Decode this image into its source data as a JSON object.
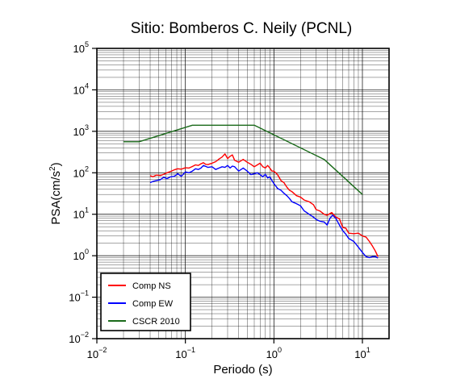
{
  "chart_data": {
    "type": "line",
    "title": "Sitio: Bomberos C. Neily (PCNL)",
    "xlabel": "Periodo (s)",
    "ylabel": {
      "base": "PSA(cm/s",
      "sup": "2",
      "end": ")"
    },
    "xscale": "log",
    "yscale": "log",
    "xlim": [
      0.01,
      20
    ],
    "ylim": [
      0.01,
      100000
    ],
    "grid": true,
    "legend_position": "bottom-left",
    "x_ticks": [
      {
        "value": 0.01,
        "base": "10",
        "exp": "−2"
      },
      {
        "value": 0.1,
        "base": "10",
        "exp": "−1"
      },
      {
        "value": 1,
        "base": "10",
        "exp": "0"
      },
      {
        "value": 10,
        "base": "10",
        "exp": "1"
      }
    ],
    "y_ticks": [
      {
        "value": 0.01,
        "base": "10",
        "exp": "−2"
      },
      {
        "value": 0.1,
        "base": "10",
        "exp": "−1"
      },
      {
        "value": 1,
        "base": "10",
        "exp": "0"
      },
      {
        "value": 10,
        "base": "10",
        "exp": "1"
      },
      {
        "value": 100,
        "base": "10",
        "exp": "2"
      },
      {
        "value": 1000,
        "base": "10",
        "exp": "3"
      },
      {
        "value": 10000,
        "base": "10",
        "exp": "4"
      },
      {
        "value": 100000,
        "base": "10",
        "exp": "5"
      }
    ],
    "series": [
      {
        "name": "Comp NS",
        "color": "#ff0000",
        "points": [
          [
            0.04,
            85
          ],
          [
            0.043,
            80
          ],
          [
            0.047,
            88
          ],
          [
            0.052,
            86
          ],
          [
            0.057,
            92
          ],
          [
            0.062,
            100
          ],
          [
            0.068,
            108
          ],
          [
            0.075,
            118
          ],
          [
            0.082,
            125
          ],
          [
            0.09,
            122
          ],
          [
            0.1,
            132
          ],
          [
            0.11,
            130
          ],
          [
            0.12,
            142
          ],
          [
            0.13,
            155
          ],
          [
            0.14,
            150
          ],
          [
            0.15,
            165
          ],
          [
            0.16,
            175
          ],
          [
            0.17,
            160
          ],
          [
            0.18,
            158
          ],
          [
            0.2,
            170
          ],
          [
            0.22,
            185
          ],
          [
            0.24,
            215
          ],
          [
            0.26,
            240
          ],
          [
            0.28,
            285
          ],
          [
            0.3,
            220
          ],
          [
            0.32,
            250
          ],
          [
            0.34,
            270
          ],
          [
            0.36,
            200
          ],
          [
            0.4,
            180
          ],
          [
            0.45,
            210
          ],
          [
            0.5,
            180
          ],
          [
            0.55,
            160
          ],
          [
            0.6,
            140
          ],
          [
            0.65,
            155
          ],
          [
            0.7,
            170
          ],
          [
            0.75,
            140
          ],
          [
            0.8,
            130
          ],
          [
            0.85,
            150
          ],
          [
            0.9,
            130
          ],
          [
            0.95,
            110
          ],
          [
            1.0,
            110
          ],
          [
            1.1,
            90
          ],
          [
            1.2,
            65
          ],
          [
            1.3,
            58
          ],
          [
            1.4,
            45
          ],
          [
            1.5,
            38
          ],
          [
            1.6,
            35
          ],
          [
            1.8,
            28
          ],
          [
            2.0,
            26
          ],
          [
            2.2,
            22
          ],
          [
            2.5,
            20
          ],
          [
            2.8,
            17
          ],
          [
            3.0,
            13
          ],
          [
            3.3,
            12
          ],
          [
            3.7,
            10
          ],
          [
            4.0,
            9.5
          ],
          [
            4.5,
            11
          ],
          [
            5.0,
            8.5
          ],
          [
            5.5,
            7.8
          ],
          [
            6.0,
            4.8
          ],
          [
            6.5,
            4.6
          ],
          [
            7.0,
            3.5
          ],
          [
            8.0,
            3.4
          ],
          [
            9.0,
            3.5
          ],
          [
            10,
            3.0
          ],
          [
            11,
            2.8
          ],
          [
            12,
            2.2
          ],
          [
            13,
            1.7
          ],
          [
            14,
            1.3
          ],
          [
            15,
            0.95
          ]
        ]
      },
      {
        "name": "Comp EW",
        "color": "#0000ff",
        "points": [
          [
            0.04,
            58
          ],
          [
            0.043,
            62
          ],
          [
            0.047,
            65
          ],
          [
            0.052,
            68
          ],
          [
            0.057,
            78
          ],
          [
            0.062,
            72
          ],
          [
            0.068,
            80
          ],
          [
            0.075,
            82
          ],
          [
            0.082,
            95
          ],
          [
            0.09,
            82
          ],
          [
            0.1,
            105
          ],
          [
            0.11,
            100
          ],
          [
            0.12,
            110
          ],
          [
            0.13,
            125
          ],
          [
            0.14,
            120
          ],
          [
            0.15,
            130
          ],
          [
            0.16,
            150
          ],
          [
            0.18,
            135
          ],
          [
            0.2,
            140
          ],
          [
            0.22,
            120
          ],
          [
            0.24,
            130
          ],
          [
            0.26,
            140
          ],
          [
            0.28,
            135
          ],
          [
            0.3,
            150
          ],
          [
            0.32,
            130
          ],
          [
            0.34,
            145
          ],
          [
            0.36,
            140
          ],
          [
            0.4,
            110
          ],
          [
            0.45,
            130
          ],
          [
            0.5,
            110
          ],
          [
            0.55,
            90
          ],
          [
            0.6,
            95
          ],
          [
            0.65,
            100
          ],
          [
            0.7,
            90
          ],
          [
            0.75,
            80
          ],
          [
            0.8,
            92
          ],
          [
            0.85,
            75
          ],
          [
            0.9,
            80
          ],
          [
            0.95,
            65
          ],
          [
            1.0,
            55
          ],
          [
            1.1,
            42
          ],
          [
            1.2,
            38
          ],
          [
            1.3,
            32
          ],
          [
            1.4,
            28
          ],
          [
            1.5,
            24
          ],
          [
            1.6,
            20
          ],
          [
            1.8,
            18
          ],
          [
            2.0,
            16
          ],
          [
            2.2,
            12
          ],
          [
            2.5,
            10
          ],
          [
            2.8,
            8.5
          ],
          [
            3.0,
            7.5
          ],
          [
            3.3,
            6.8
          ],
          [
            3.7,
            6.5
          ],
          [
            4.0,
            5.5
          ],
          [
            4.3,
            8
          ],
          [
            4.6,
            9.5
          ],
          [
            5.0,
            8
          ],
          [
            5.5,
            5.5
          ],
          [
            6.0,
            4
          ],
          [
            6.5,
            3.3
          ],
          [
            7.0,
            2.6
          ],
          [
            7.5,
            2.4
          ],
          [
            8.0,
            2.2
          ],
          [
            9.0,
            1.6
          ],
          [
            10,
            1.2
          ],
          [
            11,
            0.95
          ],
          [
            12,
            0.9
          ],
          [
            13,
            0.95
          ],
          [
            14,
            0.95
          ],
          [
            15,
            0.88
          ]
        ]
      },
      {
        "name": "CSCR 2010",
        "color": "#1a6a1a",
        "points": [
          [
            0.02,
            560
          ],
          [
            0.03,
            560
          ],
          [
            0.12,
            1400
          ],
          [
            0.6,
            1400
          ],
          [
            3.7,
            210
          ],
          [
            10,
            30
          ]
        ]
      }
    ]
  }
}
